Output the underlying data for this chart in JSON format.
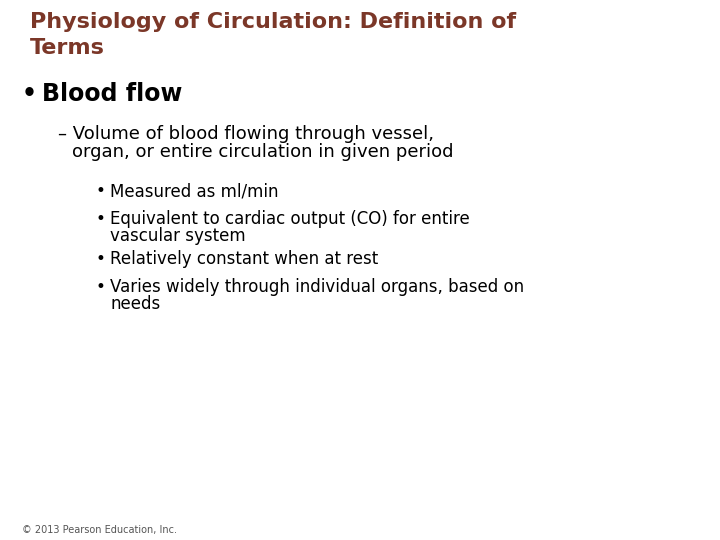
{
  "background_color": "#ffffff",
  "title_line1": "Physiology of Circulation: Definition of",
  "title_line2": "Terms",
  "title_color": "#7B3728",
  "title_fontsize": 16,
  "bullet1_text": "Blood flow",
  "bullet1_color": "#000000",
  "bullet1_fontsize": 17,
  "sub_bullet_line1": "– Volume of blood flowing through vessel,",
  "sub_bullet_line2": "   organ, or entire circulation in given period",
  "sub_bullet_color": "#000000",
  "sub_bullet_fontsize": 13,
  "sub_items": [
    "Measured as ml/min",
    "Equivalent to cardiac output (CO) for entire\nvascular system",
    "Relatively constant when at rest",
    "Varies widely through individual organs, based on\nneeds"
  ],
  "sub_items_color": "#000000",
  "sub_items_fontsize": 12,
  "footer_text": "© 2013 Pearson Education, Inc.",
  "footer_fontsize": 7,
  "footer_color": "#555555"
}
